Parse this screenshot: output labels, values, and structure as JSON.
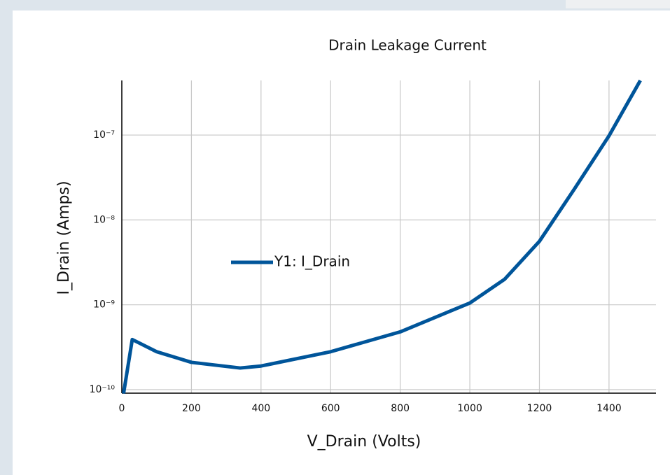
{
  "chart_data": {
    "type": "line",
    "title": "Drain Leakage Current",
    "x_label": "V_Drain (Volts)",
    "y_label": "I_Drain (Amps)",
    "x": [
      5,
      30,
      100,
      200,
      340,
      400,
      600,
      800,
      1000,
      1100,
      1200,
      1300,
      1400,
      1490
    ],
    "series": [
      {
        "name": "Y1: I_Drain",
        "color": "#00559a",
        "values": [
          9e-11,
          3.9e-10,
          2.8e-10,
          2.1e-10,
          1.8e-10,
          1.9e-10,
          2.8e-10,
          4.8e-10,
          1.05e-09,
          2e-09,
          5.6e-09,
          2.3e-08,
          9.8e-08,
          4.4e-07
        ]
      }
    ],
    "xlim": [
      0,
      1535
    ],
    "xticks": [
      0,
      200,
      400,
      600,
      800,
      1000,
      1200,
      1400
    ],
    "ylim": [
      9.1e-11,
      4.4e-07
    ],
    "yticks": [
      {
        "value": 1e-10,
        "label": "10⁻¹⁰"
      },
      {
        "value": 1e-09,
        "label": "10⁻⁹"
      },
      {
        "value": 1e-08,
        "label": "10⁻⁸"
      },
      {
        "value": 1e-07,
        "label": "10⁻⁷"
      }
    ],
    "log_y": true,
    "grid": true,
    "legend": "center-left"
  }
}
